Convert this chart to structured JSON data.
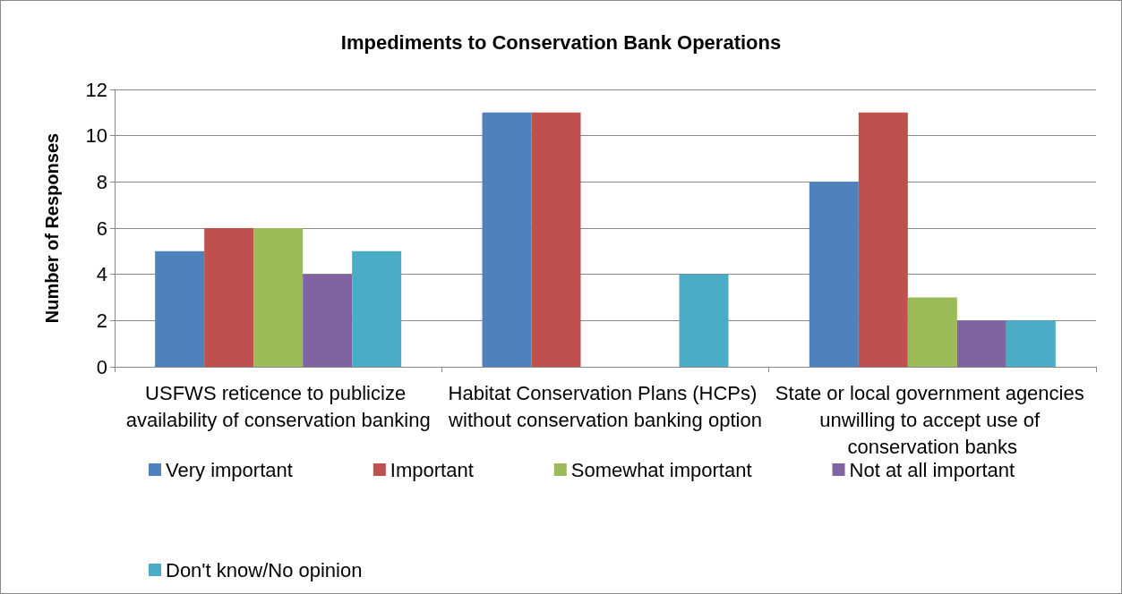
{
  "chart_data": {
    "type": "bar",
    "title": "Impediments to Conservation Bank Operations",
    "ylabel": "Number of Responses",
    "categories": [
      "USFWS reticence to publicize availability of conservation banking",
      "Habitat Conservation Plans (HCPs) without conservation banking option",
      "State or local government agencies unwilling to accept use of conservation banks"
    ],
    "series": [
      {
        "name": "Very important",
        "color": "#4f81bd",
        "values": [
          5,
          11,
          8
        ]
      },
      {
        "name": "Important",
        "color": "#c0504d",
        "values": [
          6,
          11,
          11
        ]
      },
      {
        "name": "Somewhat important",
        "color": "#9bbb59",
        "values": [
          6,
          0,
          3
        ]
      },
      {
        "name": "Not at all important",
        "color": "#8064a2",
        "values": [
          4,
          0,
          2
        ]
      },
      {
        "name": "Don't know/No opinion",
        "color": "#4bacc6",
        "values": [
          5,
          4,
          2
        ]
      }
    ],
    "ylim": [
      0,
      12
    ],
    "yticks": [
      0,
      2,
      4,
      6,
      8,
      10,
      12
    ],
    "grid": "y",
    "legend": "bottom"
  }
}
